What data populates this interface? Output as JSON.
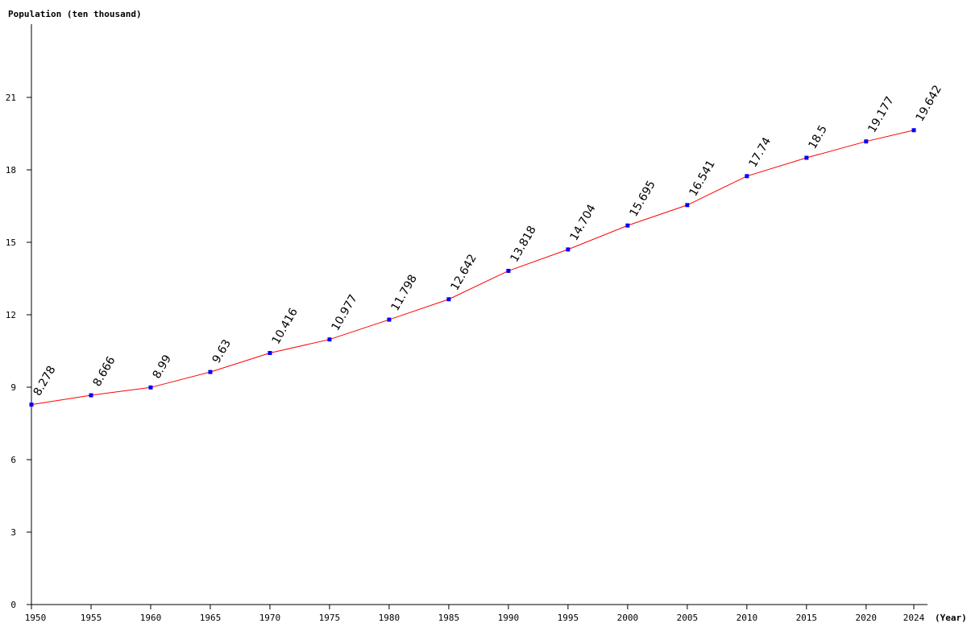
{
  "chart_data": {
    "type": "line",
    "ylabel": "Population (ten thousand)",
    "xlabel": "(Year)",
    "x": [
      1950,
      1955,
      1960,
      1965,
      1970,
      1975,
      1980,
      1985,
      1990,
      1995,
      2000,
      2005,
      2010,
      2015,
      2020,
      2024
    ],
    "series": [
      {
        "values": [
          8.278,
          8.666,
          8.99,
          9.63,
          10.416,
          10.977,
          11.798,
          12.642,
          13.818,
          14.704,
          15.695,
          16.541,
          17.74,
          18.5,
          19.177,
          19.642
        ],
        "labels": [
          "8.278",
          "8.666",
          "8.99",
          "9.63",
          "10.416",
          "10.977",
          "11.798",
          "12.642",
          "13.818",
          "14.704",
          "15.695",
          "16.541",
          "17.74",
          "18.5",
          "19.177",
          "19.642"
        ],
        "color": "#ff0000",
        "marker_color": "#0000ff"
      }
    ],
    "yticks": [
      "0",
      "3",
      "6",
      "9",
      "12",
      "15",
      "18",
      "21"
    ],
    "ylim": [
      0,
      24
    ],
    "grid": false
  }
}
